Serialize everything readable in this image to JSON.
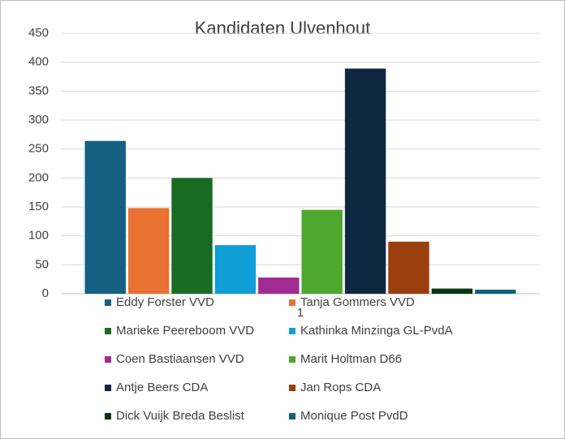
{
  "chart_data": {
    "type": "bar",
    "title": "Kandidaten Ulvenhout",
    "categories": [
      "1"
    ],
    "series": [
      {
        "name": "Eddy Forster VVD",
        "color": "#156082",
        "values": [
          264
        ]
      },
      {
        "name": "Tanja Gommers VVD",
        "color": "#e97132",
        "values": [
          148
        ]
      },
      {
        "name": "Marieke Peereboom VVD",
        "color": "#196b24",
        "values": [
          200
        ]
      },
      {
        "name": "Kathinka Minzinga GL-PvdA",
        "color": "#0f9ed5",
        "values": [
          84
        ]
      },
      {
        "name": "Coen Bastiaansen VVD",
        "color": "#a02b93",
        "values": [
          28
        ]
      },
      {
        "name": "Marit Holtman D66",
        "color": "#4ea72e",
        "values": [
          145
        ]
      },
      {
        "name": "Antje Beers CDA",
        "color": "#0e2841",
        "values": [
          389
        ]
      },
      {
        "name": "Jan Rops CDA",
        "color": "#9b3f0e",
        "values": [
          90
        ]
      },
      {
        "name": "Dick Vuijk Breda Beslist",
        "color": "#0b3512",
        "values": [
          9
        ]
      },
      {
        "name": "Monique Post PvdD",
        "color": "#10607f",
        "values": [
          7
        ]
      }
    ],
    "ylim": [
      0,
      450
    ],
    "yticks": [
      0,
      50,
      100,
      150,
      200,
      250,
      300,
      350,
      400,
      450
    ],
    "grid": true,
    "legend": "bottom"
  }
}
